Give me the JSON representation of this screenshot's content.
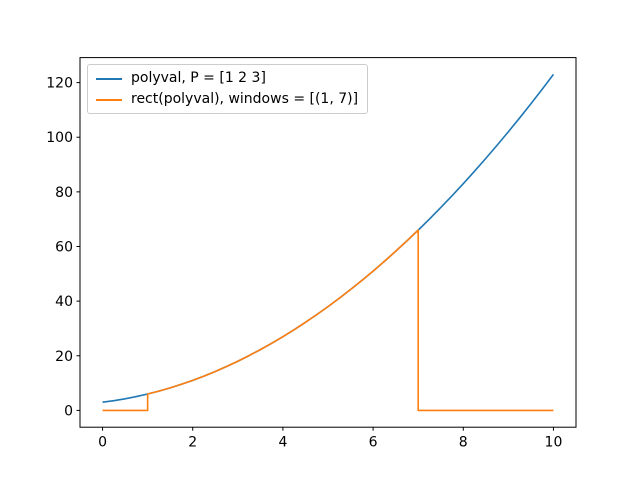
{
  "figure": {
    "background": "#ffffff",
    "frame_color": "#000000",
    "tick_color": "#000000",
    "label_color": "#000000"
  },
  "chart_data": {
    "type": "line",
    "title": "",
    "xlabel": "",
    "ylabel": "",
    "grid": false,
    "legend_position": "upper-left",
    "xlim": [
      -0.5,
      10.5
    ],
    "ylim": [
      -6.15,
      129.15
    ],
    "xticks": [
      0,
      2,
      4,
      6,
      8,
      10
    ],
    "yticks": [
      0,
      20,
      40,
      60,
      80,
      100,
      120
    ],
    "polynomial_coefficients": [
      1,
      2,
      3
    ],
    "rect_window": [
      1,
      7
    ],
    "series": [
      {
        "label": "polyval, P = [1 2 3]",
        "color": "#1f77b4",
        "x": [
          0,
          0.25,
          0.5,
          0.75,
          1,
          1.25,
          1.5,
          1.75,
          2,
          2.25,
          2.5,
          2.75,
          3,
          3.25,
          3.5,
          3.75,
          4,
          4.25,
          4.5,
          4.75,
          5,
          5.25,
          5.5,
          5.75,
          6,
          6.25,
          6.5,
          6.75,
          7,
          7.25,
          7.5,
          7.75,
          8,
          8.25,
          8.5,
          8.75,
          9,
          9.25,
          9.5,
          9.75,
          10
        ],
        "y": [
          3,
          3.5625,
          4.25,
          5.0625,
          6,
          7.0625,
          8.25,
          9.5625,
          11,
          12.5625,
          14.25,
          16.0625,
          18,
          20.0625,
          22.25,
          24.5625,
          27,
          29.5625,
          32.25,
          35.0625,
          38,
          41.0625,
          44.25,
          47.5625,
          51,
          54.5625,
          58.25,
          62.0625,
          66,
          70.0625,
          74.25,
          78.5625,
          83,
          87.5625,
          92.25,
          97.0625,
          102,
          107.0625,
          112.25,
          117.5625,
          123
        ]
      },
      {
        "label": "rect(polyval), windows = [(1, 7)]",
        "color": "#ff7f0e",
        "x": [
          0,
          1,
          1,
          1.25,
          1.5,
          1.75,
          2,
          2.25,
          2.5,
          2.75,
          3,
          3.25,
          3.5,
          3.75,
          4,
          4.25,
          4.5,
          4.75,
          5,
          5.25,
          5.5,
          5.75,
          6,
          6.25,
          6.5,
          6.75,
          7,
          7,
          10
        ],
        "y": [
          0,
          0,
          6,
          7.0625,
          8.25,
          9.5625,
          11,
          12.5625,
          14.25,
          16.0625,
          18,
          20.0625,
          22.25,
          24.5625,
          27,
          29.5625,
          32.25,
          35.0625,
          38,
          41.0625,
          44.25,
          47.5625,
          51,
          54.5625,
          58.25,
          62.0625,
          66,
          0,
          0
        ]
      }
    ]
  }
}
